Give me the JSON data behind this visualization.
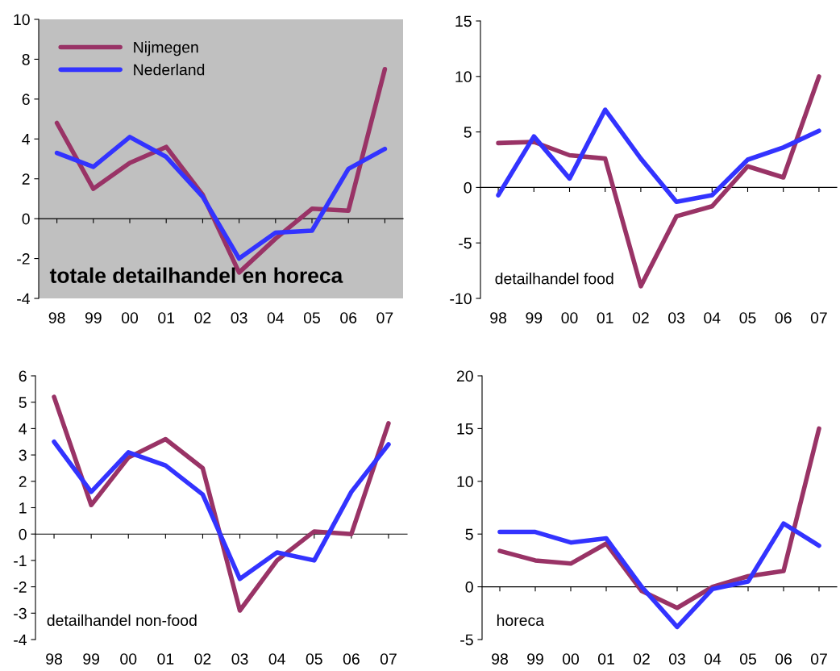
{
  "chart_data": [
    {
      "type": "line",
      "title": "totale detailhandel en horeca",
      "categories": [
        "98",
        "99",
        "00",
        "01",
        "02",
        "03",
        "04",
        "05",
        "06",
        "07"
      ],
      "ylim": [
        -4,
        10
      ],
      "yticks": [
        -4,
        -2,
        0,
        2,
        4,
        6,
        8,
        10
      ],
      "legend": "top left",
      "series": [
        {
          "name": "Nijmegen",
          "color": "#993366",
          "values": [
            4.8,
            1.5,
            2.8,
            3.6,
            1.2,
            -2.7,
            -1.0,
            0.5,
            0.4,
            7.5
          ]
        },
        {
          "name": "Nederland",
          "color": "#3333ff",
          "values": [
            3.3,
            2.6,
            4.1,
            3.1,
            1.1,
            -2.0,
            -0.7,
            -0.6,
            2.5,
            3.5
          ]
        }
      ]
    },
    {
      "type": "line",
      "title": "detailhandel food",
      "categories": [
        "98",
        "99",
        "00",
        "01",
        "02",
        "03",
        "04",
        "05",
        "06",
        "07"
      ],
      "ylim": [
        -10,
        15
      ],
      "yticks": [
        -10,
        -5,
        0,
        5,
        10,
        15
      ],
      "series": [
        {
          "color": "#993366",
          "values": [
            4.0,
            4.1,
            2.9,
            2.6,
            -8.9,
            -2.6,
            -1.7,
            1.9,
            0.9,
            10.0
          ]
        },
        {
          "color": "#3333ff",
          "values": [
            -0.7,
            4.6,
            0.8,
            7.0,
            2.6,
            -1.3,
            -0.7,
            2.5,
            3.6,
            5.1
          ]
        }
      ]
    },
    {
      "type": "line",
      "title": "detailhandel non-food",
      "categories": [
        "98",
        "99",
        "00",
        "01",
        "02",
        "03",
        "04",
        "05",
        "06",
        "07"
      ],
      "ylim": [
        -4,
        6
      ],
      "yticks": [
        -4,
        -3,
        -2,
        -1,
        0,
        1,
        2,
        3,
        4,
        5,
        6
      ],
      "series": [
        {
          "color": "#993366",
          "values": [
            5.2,
            1.1,
            2.9,
            3.6,
            2.5,
            -2.9,
            -1.0,
            0.1,
            0.0,
            4.2
          ]
        },
        {
          "color": "#3333ff",
          "values": [
            3.5,
            1.6,
            3.1,
            2.6,
            1.5,
            -1.7,
            -0.7,
            -1.0,
            1.6,
            3.4
          ]
        }
      ]
    },
    {
      "type": "line",
      "title": "horeca",
      "categories": [
        "98",
        "99",
        "00",
        "01",
        "02",
        "03",
        "04",
        "05",
        "06",
        "07"
      ],
      "ylim": [
        -5,
        20
      ],
      "yticks": [
        -5,
        0,
        5,
        10,
        15,
        20
      ],
      "series": [
        {
          "color": "#993366",
          "values": [
            3.4,
            2.5,
            2.2,
            4.1,
            -0.4,
            -2.0,
            0.0,
            1.0,
            1.5,
            15.0
          ]
        },
        {
          "color": "#3333ff",
          "values": [
            5.2,
            5.2,
            4.2,
            4.6,
            0.0,
            -3.8,
            -0.2,
            0.5,
            6.0,
            3.9
          ]
        }
      ]
    }
  ]
}
